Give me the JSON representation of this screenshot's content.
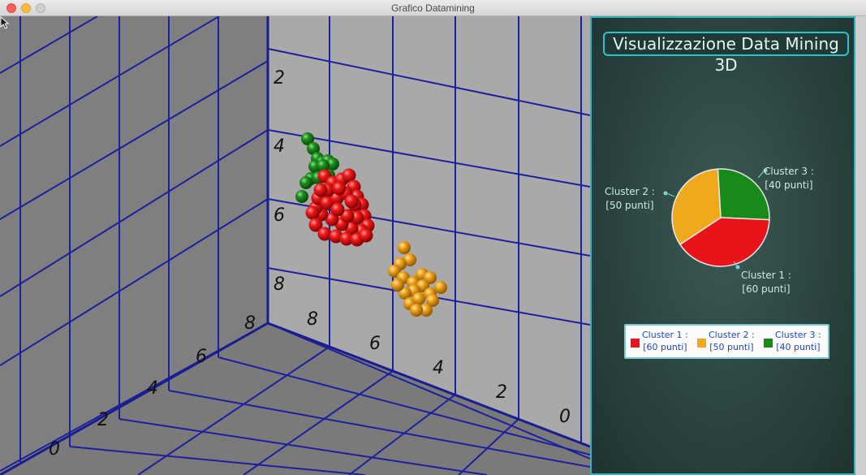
{
  "window": {
    "title": "Grafico Datamining"
  },
  "panel": {
    "title": "Visualizzazione Data Mining 3D"
  },
  "colors": {
    "cluster1": "#e8141a",
    "cluster2": "#f0a81c",
    "cluster3": "#178a1a",
    "grid": "#1c1f9e",
    "panel_border": "#2bb5c0"
  },
  "scene": {
    "back_wall_ticks": [
      "2",
      "4",
      "6",
      "8"
    ],
    "left_wall_ticks": [
      "0",
      "2",
      "4",
      "6",
      "8"
    ],
    "floor_ticks": [
      "8",
      "6",
      "4",
      "2",
      "0"
    ]
  },
  "pie": {
    "labels": [
      {
        "name": "Cluster 1 :",
        "count": "[60 punti]"
      },
      {
        "name": "Cluster 2 :",
        "count": "[50 punti]"
      },
      {
        "name": "Cluster 3 :",
        "count": "[40 punti]"
      }
    ]
  },
  "legend": {
    "items": [
      {
        "name": "Cluster 1 :",
        "count": "[60 punti]"
      },
      {
        "name": "Cluster 2 :",
        "count": "[50 punti]"
      },
      {
        "name": "Cluster 3 :",
        "count": "[40 punti]"
      }
    ]
  },
  "chart_data": {
    "type": "pie",
    "categories": [
      "Cluster 1",
      "Cluster 2",
      "Cluster 3"
    ],
    "values": [
      60,
      50,
      40
    ]
  }
}
